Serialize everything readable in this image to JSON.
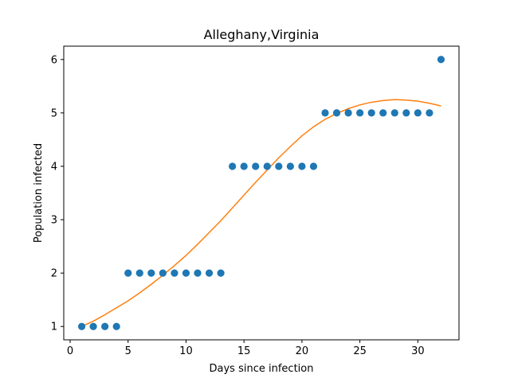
{
  "chart_data": {
    "type": "scatter",
    "title": "Alleghany,Virginia",
    "xlabel": "Days since infection",
    "ylabel": "Population infected",
    "xlim": [
      -0.55,
      33.55
    ],
    "ylim": [
      0.75,
      6.25
    ],
    "xticks": [
      0,
      5,
      10,
      15,
      20,
      25,
      30
    ],
    "yticks": [
      1,
      2,
      3,
      4,
      5,
      6
    ],
    "grid": false,
    "series": [
      {
        "kind": "scatter",
        "color": "#1f77b4",
        "x": [
          1,
          2,
          3,
          4,
          5,
          6,
          7,
          8,
          9,
          10,
          11,
          12,
          13,
          14,
          15,
          16,
          17,
          18,
          19,
          20,
          21,
          22,
          23,
          24,
          25,
          26,
          27,
          28,
          29,
          30,
          31,
          32
        ],
        "y": [
          1,
          1,
          1,
          1,
          2,
          2,
          2,
          2,
          2,
          2,
          2,
          2,
          2,
          4,
          4,
          4,
          4,
          4,
          4,
          4,
          4,
          5,
          5,
          5,
          5,
          5,
          5,
          5,
          5,
          5,
          5,
          6
        ]
      },
      {
        "kind": "line",
        "color": "#ff7f0e",
        "x": [
          1,
          2,
          3,
          4,
          5,
          6,
          7,
          8,
          9,
          10,
          11,
          12,
          13,
          14,
          15,
          16,
          17,
          18,
          19,
          20,
          21,
          22,
          23,
          24,
          25,
          26,
          27,
          28,
          29,
          30,
          31,
          32
        ],
        "y": [
          1.0,
          1.1,
          1.22,
          1.35,
          1.48,
          1.63,
          1.79,
          1.96,
          2.14,
          2.33,
          2.54,
          2.76,
          2.98,
          3.22,
          3.46,
          3.7,
          3.93,
          4.16,
          4.37,
          4.57,
          4.74,
          4.88,
          4.99,
          5.08,
          5.15,
          5.2,
          5.23,
          5.25,
          5.24,
          5.22,
          5.18,
          5.13
        ]
      }
    ]
  }
}
